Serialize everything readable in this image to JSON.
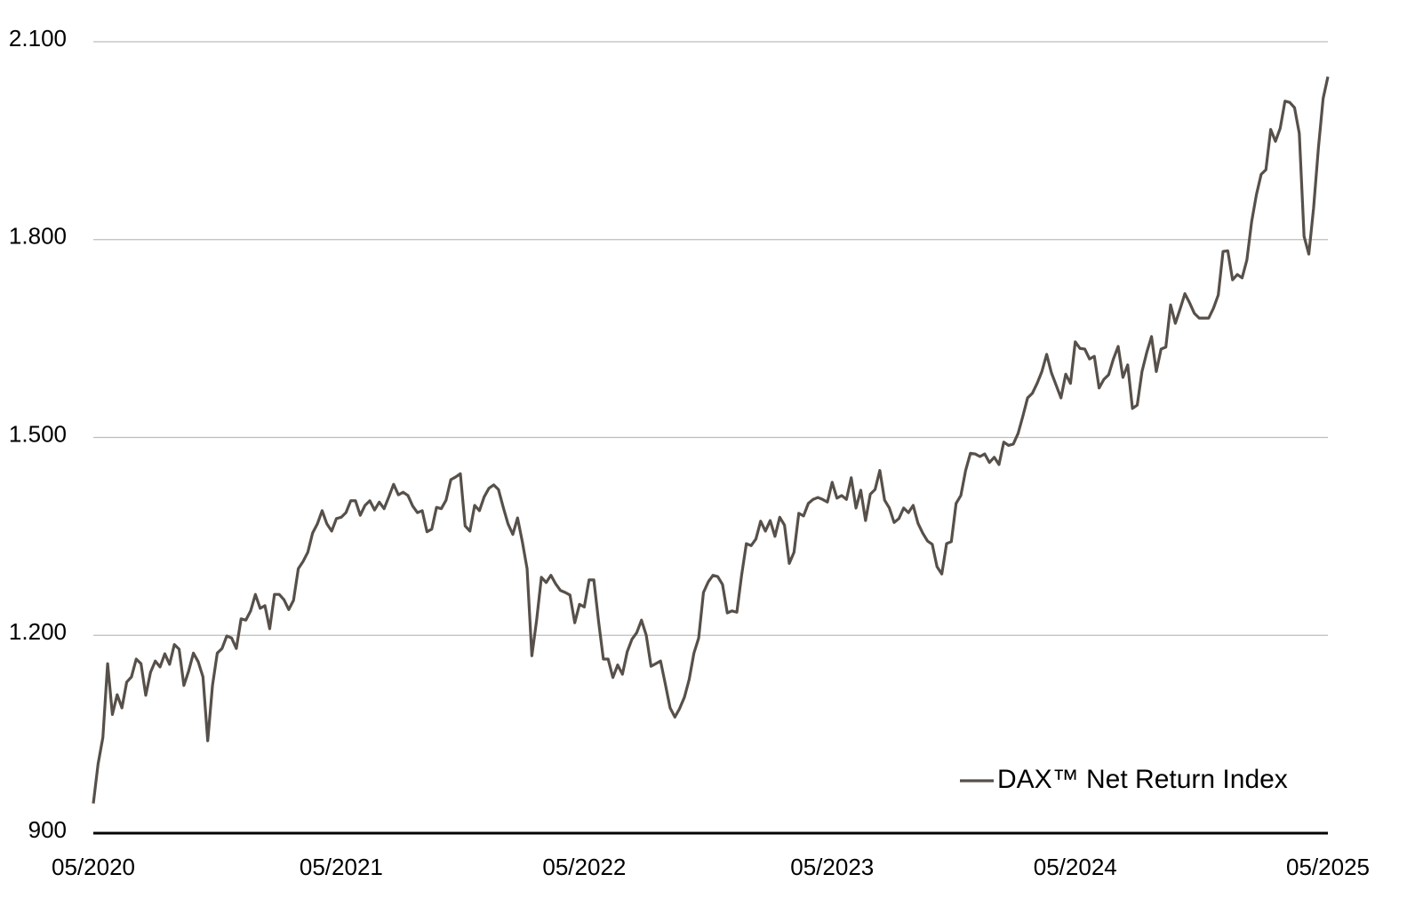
{
  "chart_data": {
    "type": "line",
    "categories": [
      "05/2020",
      null,
      null,
      null,
      null,
      null,
      null,
      null,
      null,
      null,
      null,
      null,
      null,
      null,
      null,
      null,
      null,
      null,
      null,
      null,
      null,
      null,
      null,
      null,
      null,
      null,
      null,
      null,
      null,
      null,
      null,
      null,
      null,
      null,
      null,
      null,
      null,
      null,
      null,
      null,
      null,
      null,
      null,
      null,
      null,
      null,
      null,
      null,
      null,
      null,
      null,
      null,
      "05/2021",
      null,
      null,
      null,
      null,
      null,
      null,
      null,
      null,
      null,
      null,
      null,
      null,
      null,
      null,
      null,
      null,
      null,
      null,
      null,
      null,
      null,
      null,
      null,
      null,
      null,
      null,
      null,
      null,
      null,
      null,
      null,
      null,
      null,
      null,
      null,
      null,
      null,
      null,
      null,
      null,
      null,
      null,
      null,
      null,
      null,
      null,
      null,
      null,
      null,
      null,
      "05/2022",
      null,
      null,
      null,
      null,
      null,
      null,
      null,
      null,
      null,
      null,
      null,
      null,
      null,
      null,
      null,
      null,
      null,
      null,
      null,
      null,
      null,
      null,
      null,
      null,
      null,
      null,
      null,
      null,
      null,
      null,
      null,
      null,
      null,
      null,
      null,
      null,
      null,
      null,
      null,
      null,
      null,
      null,
      null,
      null,
      null,
      null,
      null,
      null,
      null,
      null,
      null,
      "05/2023",
      null,
      null,
      null,
      null,
      null,
      null,
      null,
      null,
      null,
      null,
      null,
      null,
      null,
      null,
      null,
      null,
      null,
      null,
      null,
      null,
      null,
      null,
      null,
      null,
      null,
      null,
      null,
      null,
      null,
      null,
      null,
      null,
      null,
      null,
      null,
      null,
      null,
      null,
      null,
      null,
      null,
      null,
      null,
      null,
      null,
      null,
      null,
      null,
      null,
      null,
      "05/2024",
      null,
      null,
      null,
      null,
      null,
      null,
      null,
      null,
      null,
      null,
      null,
      null,
      null,
      null,
      null,
      null,
      null,
      null,
      null,
      null,
      null,
      null,
      null,
      null,
      null,
      null,
      null,
      null,
      null,
      null,
      null,
      null,
      null,
      null,
      null,
      null,
      null,
      null,
      null,
      null,
      null,
      null,
      null,
      null,
      null,
      null,
      null,
      null,
      null,
      null,
      null,
      null,
      "05/2025"
    ],
    "series": [
      {
        "name": "DAX™ Net Return Index",
        "color": "#57504a",
        "values": [
          945,
          1005,
          1045,
          1157,
          1080,
          1110,
          1090,
          1129,
          1137,
          1164,
          1157,
          1109,
          1144,
          1161,
          1152,
          1172,
          1156,
          1186,
          1179,
          1124,
          1146,
          1173,
          1160,
          1137,
          1040,
          1124,
          1173,
          1180,
          1199,
          1196,
          1180,
          1225,
          1223,
          1237,
          1262,
          1241,
          1245,
          1210,
          1262,
          1262,
          1254,
          1239,
          1253,
          1301,
          1312,
          1326,
          1355,
          1369,
          1389,
          1369,
          1358,
          1377,
          1379,
          1386,
          1404,
          1404,
          1382,
          1397,
          1404,
          1390,
          1402,
          1392,
          1410,
          1429,
          1413,
          1417,
          1412,
          1396,
          1386,
          1389,
          1357,
          1361,
          1394,
          1392,
          1405,
          1436,
          1440,
          1445,
          1366,
          1358,
          1397,
          1389,
          1410,
          1423,
          1428,
          1421,
          1394,
          1369,
          1353,
          1378,
          1342,
          1301,
          1169,
          1223,
          1288,
          1280,
          1291,
          1278,
          1268,
          1265,
          1261,
          1219,
          1247,
          1243,
          1284,
          1284,
          1221,
          1164,
          1164,
          1136,
          1155,
          1141,
          1175,
          1194,
          1204,
          1223,
          1200,
          1153,
          1157,
          1161,
          1126,
          1090,
          1076,
          1089,
          1106,
          1133,
          1173,
          1196,
          1265,
          1281,
          1291,
          1289,
          1277,
          1234,
          1237,
          1235,
          1291,
          1339,
          1336,
          1346,
          1373,
          1358,
          1374,
          1350,
          1379,
          1367,
          1309,
          1326,
          1385,
          1381,
          1400,
          1406,
          1409,
          1406,
          1402,
          1432,
          1408,
          1412,
          1406,
          1439,
          1393,
          1420,
          1374,
          1414,
          1421,
          1450,
          1405,
          1393,
          1371,
          1377,
          1393,
          1386,
          1397,
          1370,
          1355,
          1343,
          1338,
          1304,
          1293,
          1339,
          1342,
          1400,
          1412,
          1450,
          1476,
          1475,
          1471,
          1475,
          1462,
          1470,
          1459,
          1493,
          1488,
          1490,
          1506,
          1532,
          1560,
          1567,
          1582,
          1600,
          1626,
          1598,
          1579,
          1560,
          1596,
          1582,
          1645,
          1635,
          1634,
          1619,
          1623,
          1575,
          1588,
          1595,
          1619,
          1638,
          1591,
          1610,
          1544,
          1549,
          1600,
          1629,
          1653,
          1600,
          1634,
          1637,
          1701,
          1673,
          1695,
          1718,
          1704,
          1688,
          1681,
          1681,
          1681,
          1696,
          1716,
          1782,
          1783,
          1739,
          1747,
          1742,
          1769,
          1827,
          1868,
          1899,
          1906,
          1967,
          1949,
          1969,
          2010,
          2008,
          2000,
          1961,
          1805,
          1778,
          1848,
          1938,
          2014,
          2047
        ]
      }
    ],
    "ylim": [
      900,
      2100
    ],
    "yticks": [
      900,
      {
        "value": 1200,
        "label": "1.200"
      },
      {
        "value": 1500,
        "label": "1.500"
      },
      {
        "value": 1800,
        "label": "1.800"
      },
      {
        "value": 2100,
        "label": "2.100"
      }
    ],
    "grid": true,
    "legend": "lower right"
  }
}
